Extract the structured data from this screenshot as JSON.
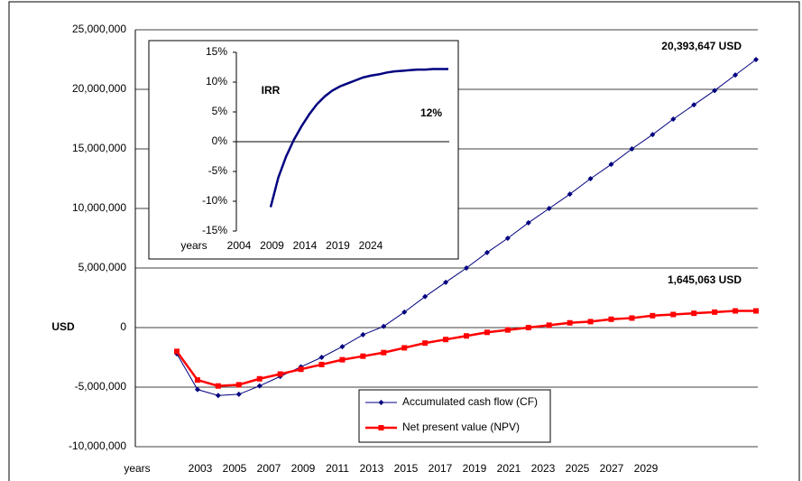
{
  "chart_data": [
    {
      "type": "line",
      "y_axis_label": "USD",
      "x_tick_labels": [
        "years",
        "2003",
        "2005",
        "2007",
        "2009",
        "2011",
        "2013",
        "2015",
        "2017",
        "2019",
        "2021",
        "2023",
        "2025",
        "2027",
        "2029"
      ],
      "series": [
        {
          "name": "Accumulated cash flow (CF)",
          "color": "#000080",
          "marker": "diamond",
          "values": [
            -2200000,
            -5200000,
            -5700000,
            -5600000,
            -4900000,
            -4100000,
            -3300000,
            -2500000,
            -1600000,
            -600000,
            100000,
            1300000,
            2600000,
            3800000,
            5000000,
            6300000,
            7500000,
            8800000,
            10000000,
            11200000,
            12500000,
            13700000,
            15000000,
            16200000,
            17500000,
            18700000,
            19900000,
            21200000,
            22500000
          ]
        },
        {
          "name": "Net present value (NPV)",
          "color": "#ff0000",
          "marker": "square",
          "values": [
            -2000000,
            -4400000,
            -4900000,
            -4800000,
            -4300000,
            -3900000,
            -3500000,
            -3100000,
            -2700000,
            -2400000,
            -2100000,
            -1700000,
            -1300000,
            -1000000,
            -700000,
            -400000,
            -200000,
            0,
            200000,
            400000,
            500000,
            700000,
            800000,
            1000000,
            1100000,
            1200000,
            1300000,
            1400000,
            1400000
          ]
        }
      ],
      "ylim": [
        -10000000,
        25000000
      ],
      "yticks": [
        {
          "value": -10000000,
          "label": "-10,000,000"
        },
        {
          "value": -5000000,
          "label": "-5,000,000"
        },
        0,
        {
          "value": 5000000,
          "label": "5,000,000"
        },
        {
          "value": 10000000,
          "label": "10,000,000"
        },
        {
          "value": 15000000,
          "label": "15,000,000"
        },
        {
          "value": 20000000,
          "label": "20,000,000"
        },
        {
          "value": 25000000,
          "label": "25,000,000"
        }
      ],
      "grid": true,
      "annotations": [
        "20,393,647 USD",
        "1,645,063 USD"
      ],
      "legend": "bottom"
    },
    {
      "type": "line",
      "title": "IRR",
      "x_tick_labels": [
        "years",
        "2004",
        "2009",
        "2014",
        "2019",
        "2024"
      ],
      "series": [
        {
          "color": "#000080",
          "values": [
            -11,
            -6,
            -2.5,
            0.3,
            2.6,
            4.6,
            6.3,
            7.6,
            8.6,
            9.3,
            9.8,
            10.3,
            10.8,
            11.1,
            11.3,
            11.6,
            11.8,
            11.9,
            12,
            12.1,
            12.1,
            12.2,
            12.2,
            12.2
          ]
        }
      ],
      "ylim": [
        -15,
        15
      ],
      "yticks": [
        {
          "value": -15,
          "label": "-15%"
        },
        {
          "value": -10,
          "label": "-10%"
        },
        {
          "value": -5,
          "label": "-5%"
        },
        {
          "value": 0,
          "label": "0%"
        },
        {
          "value": 5,
          "label": "5%"
        },
        {
          "value": 10,
          "label": "10%"
        },
        {
          "value": 15,
          "label": "15%"
        }
      ],
      "annotations": [
        "12%"
      ]
    }
  ]
}
